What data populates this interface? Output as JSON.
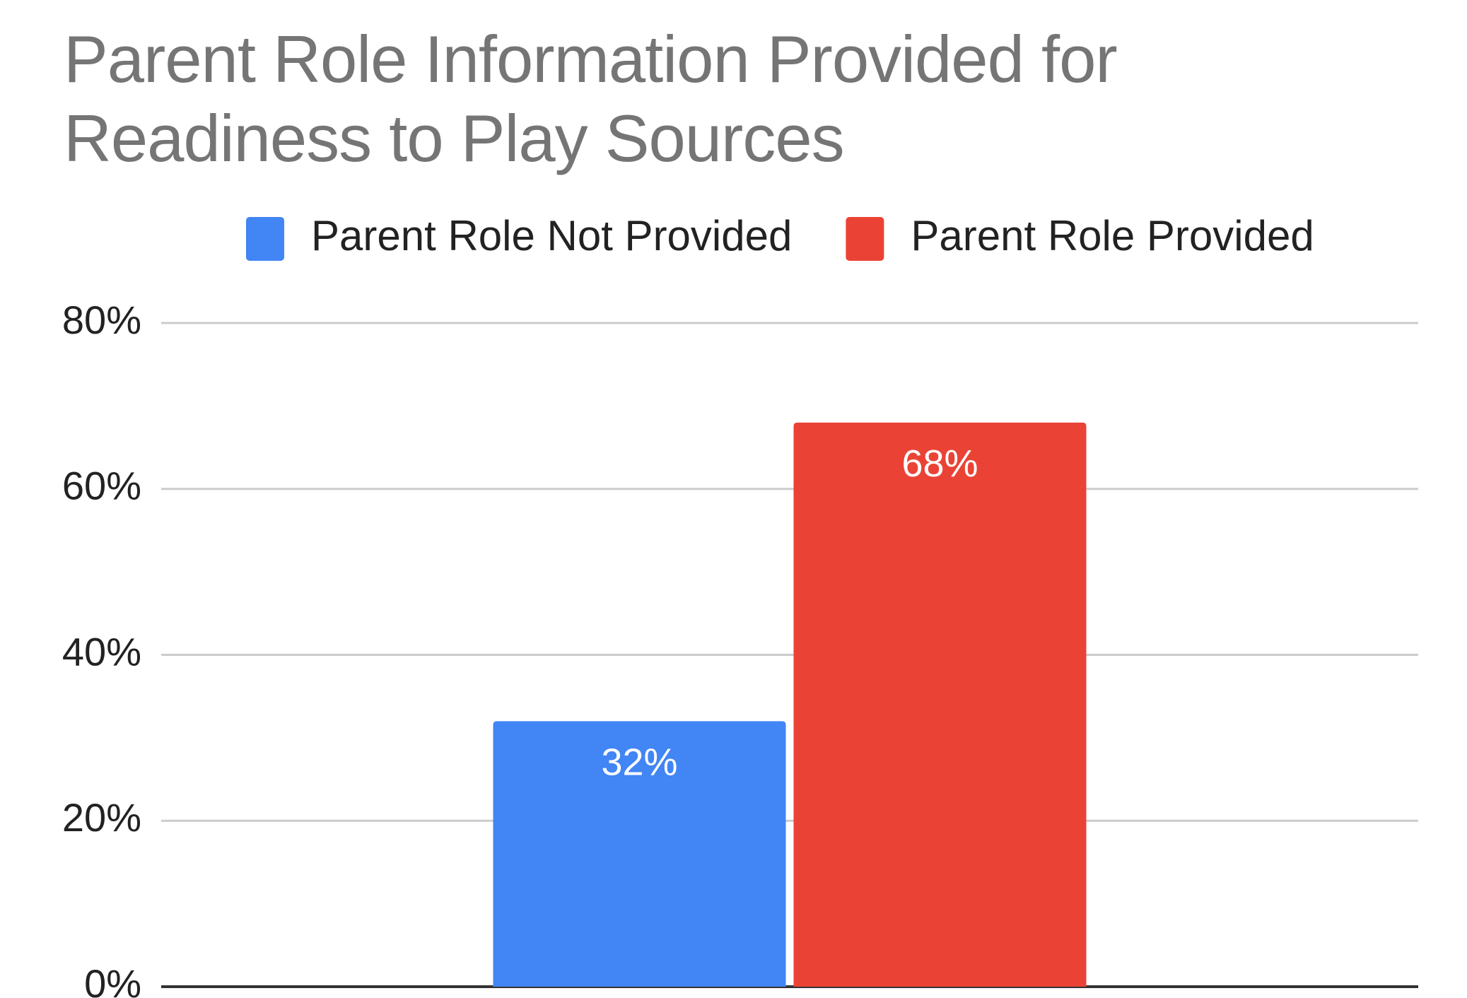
{
  "chart_data": {
    "type": "bar",
    "title": "Parent Role Information Provided for Readiness to Play Sources",
    "categories": [
      null
    ],
    "series": [
      {
        "name": "Parent Role Not Provided",
        "color": "#4285f4",
        "values": [
          32
        ],
        "value_labels": [
          "32%"
        ]
      },
      {
        "name": "Parent Role Provided",
        "color": "#ea4335",
        "values": [
          68
        ],
        "value_labels": [
          "68%"
        ]
      }
    ],
    "ylim": [
      0,
      80
    ],
    "yticks": [
      {
        "value": 0,
        "label": "0%"
      },
      {
        "value": 20,
        "label": "20%"
      },
      {
        "value": 40,
        "label": "40%"
      },
      {
        "value": 60,
        "label": "60%"
      },
      {
        "value": 80,
        "label": "80%"
      }
    ],
    "grid": true,
    "legend": "top"
  }
}
